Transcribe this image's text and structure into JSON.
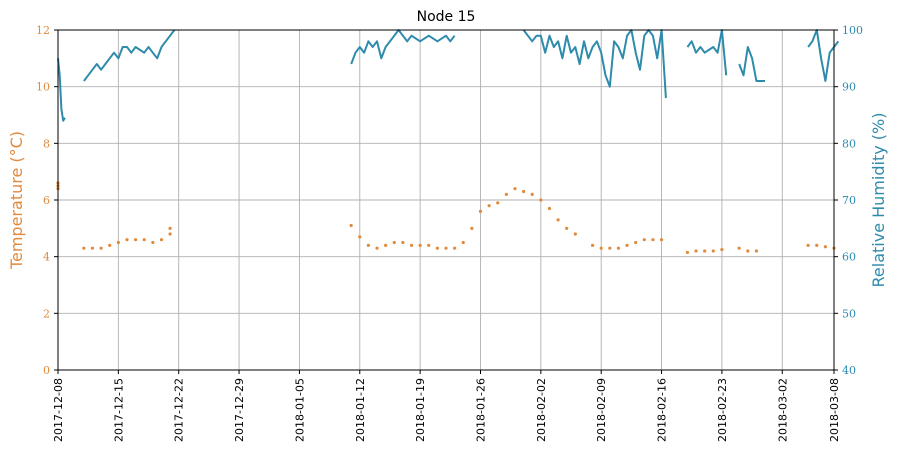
{
  "chart_data": {
    "type": "line",
    "title": "Node 15",
    "ylabel_left": "Temperature (°C)",
    "ylabel_right": "Relative Humidity (%)",
    "xlim": [
      "2017-12-08",
      "2018-03-08"
    ],
    "ylim_left": [
      0,
      12
    ],
    "ylim_right": [
      40,
      100
    ],
    "grid": true,
    "x_ticks": [
      "2017-12-08",
      "2017-12-15",
      "2017-12-22",
      "2017-12-29",
      "2018-01-05",
      "2018-01-12",
      "2018-01-19",
      "2018-01-26",
      "2018-02-02",
      "2018-02-09",
      "2018-02-16",
      "2018-02-23",
      "2018-03-02",
      "2018-03-08"
    ],
    "y_ticks_left": [
      "0",
      "2",
      "4",
      "6",
      "8",
      "10",
      "12"
    ],
    "y_ticks_right": [
      "40",
      "50",
      "60",
      "70",
      "80",
      "90",
      "100"
    ],
    "colors": {
      "temperature": "#e08a3c",
      "humidity": "#2e8bab",
      "grid": "#b0b0b0"
    },
    "series": [
      {
        "axis": "left",
        "style": "markers",
        "segments": [
          [
            [
              "2017-12-08",
              6.6
            ],
            [
              "2017-12-08",
              6.5
            ],
            [
              "2017-12-08",
              6.4
            ]
          ],
          [
            [
              "2017-12-11",
              4.3
            ],
            [
              "2017-12-12",
              4.3
            ],
            [
              "2017-12-13",
              4.3
            ],
            [
              "2017-12-14",
              4.4
            ],
            [
              "2017-12-15",
              4.5
            ],
            [
              "2017-12-16",
              4.6
            ],
            [
              "2017-12-17",
              4.6
            ],
            [
              "2017-12-18",
              4.6
            ],
            [
              "2017-12-19",
              4.5
            ],
            [
              "2017-12-20",
              4.6
            ],
            [
              "2017-12-21",
              4.8
            ],
            [
              "2017-12-21",
              5.0
            ]
          ],
          [
            [
              "2018-01-11",
              5.1
            ],
            [
              "2018-01-12",
              4.7
            ],
            [
              "2018-01-13",
              4.4
            ],
            [
              "2018-01-14",
              4.3
            ],
            [
              "2018-01-15",
              4.4
            ],
            [
              "2018-01-16",
              4.5
            ],
            [
              "2018-01-17",
              4.5
            ],
            [
              "2018-01-18",
              4.4
            ],
            [
              "2018-01-19",
              4.4
            ],
            [
              "2018-01-20",
              4.4
            ],
            [
              "2018-01-21",
              4.3
            ],
            [
              "2018-01-22",
              4.3
            ],
            [
              "2018-01-23",
              4.3
            ],
            [
              "2018-01-24",
              4.5
            ],
            [
              "2018-01-25",
              5.0
            ],
            [
              "2018-01-26",
              5.6
            ],
            [
              "2018-01-27",
              5.8
            ],
            [
              "2018-01-28",
              5.9
            ],
            [
              "2018-01-29",
              6.2
            ],
            [
              "2018-01-30",
              6.4
            ],
            [
              "2018-01-31",
              6.3
            ],
            [
              "2018-02-01",
              6.2
            ],
            [
              "2018-02-02",
              6.0
            ],
            [
              "2018-02-03",
              5.7
            ],
            [
              "2018-02-04",
              5.3
            ],
            [
              "2018-02-05",
              5.0
            ],
            [
              "2018-02-06",
              4.8
            ]
          ],
          [
            [
              "2018-02-08",
              4.4
            ],
            [
              "2018-02-09",
              4.3
            ],
            [
              "2018-02-10",
              4.3
            ],
            [
              "2018-02-11",
              4.3
            ],
            [
              "2018-02-12",
              4.4
            ],
            [
              "2018-02-13",
              4.5
            ],
            [
              "2018-02-14",
              4.6
            ],
            [
              "2018-02-15",
              4.6
            ],
            [
              "2018-02-16",
              4.6
            ]
          ],
          [
            [
              "2018-02-19",
              4.15
            ],
            [
              "2018-02-20",
              4.2
            ],
            [
              "2018-02-21",
              4.2
            ],
            [
              "2018-02-22",
              4.2
            ],
            [
              "2018-02-23",
              4.25
            ]
          ],
          [
            [
              "2018-02-25",
              4.3
            ],
            [
              "2018-02-26",
              4.2
            ],
            [
              "2018-02-27",
              4.2
            ]
          ],
          [
            [
              "2018-03-05",
              4.4
            ],
            [
              "2018-03-06",
              4.4
            ],
            [
              "2018-03-07",
              4.35
            ],
            [
              "2018-03-08",
              4.3
            ]
          ]
        ]
      },
      {
        "axis": "right",
        "style": "line",
        "segments": [
          [
            [
              "2017-12-08",
              95
            ],
            [
              "2017-12-08",
              92
            ],
            [
              "2017-12-08",
              86
            ],
            [
              "2017-12-08",
              84
            ],
            [
              "2017-12-08",
              84.5
            ]
          ],
          [
            [
              "2017-12-11",
              91
            ],
            [
              "2017-12-11",
              92
            ],
            [
              "2017-12-12",
              93
            ],
            [
              "2017-12-12",
              94
            ],
            [
              "2017-12-13",
              93
            ],
            [
              "2017-12-13",
              94
            ],
            [
              "2017-12-14",
              95
            ],
            [
              "2017-12-14",
              96
            ],
            [
              "2017-12-15",
              95
            ],
            [
              "2017-12-15",
              97
            ],
            [
              "2017-12-16",
              97
            ],
            [
              "2017-12-16",
              96
            ],
            [
              "2017-12-17",
              97
            ],
            [
              "2017-12-18",
              96
            ],
            [
              "2017-12-18",
              97
            ],
            [
              "2017-12-19",
              96
            ],
            [
              "2017-12-19",
              95
            ],
            [
              "2017-12-20",
              97
            ],
            [
              "2017-12-20",
              98
            ],
            [
              "2017-12-21",
              99
            ],
            [
              "2017-12-21",
              100
            ]
          ],
          [
            [
              "2018-01-11",
              94
            ],
            [
              "2018-01-11",
              96
            ],
            [
              "2018-01-12",
              97
            ],
            [
              "2018-01-12",
              96
            ],
            [
              "2018-01-13",
              98
            ],
            [
              "2018-01-13",
              97
            ],
            [
              "2018-01-14",
              98
            ],
            [
              "2018-01-14",
              95
            ],
            [
              "2018-01-15",
              97
            ],
            [
              "2018-01-15",
              98
            ],
            [
              "2018-01-16",
              99
            ],
            [
              "2018-01-16",
              100
            ],
            [
              "2018-01-17",
              99
            ],
            [
              "2018-01-17",
              98
            ],
            [
              "2018-01-18",
              99
            ],
            [
              "2018-01-19",
              98
            ],
            [
              "2018-01-20",
              99
            ],
            [
              "2018-01-21",
              98
            ],
            [
              "2018-01-22",
              99
            ],
            [
              "2018-01-22",
              98
            ],
            [
              "2018-01-23",
              99
            ]
          ],
          [
            [
              "2018-01-31",
              100
            ],
            [
              "2018-01-31",
              99
            ],
            [
              "2018-02-01",
              98
            ],
            [
              "2018-02-01",
              99
            ],
            [
              "2018-02-02",
              99
            ],
            [
              "2018-02-02",
              96
            ],
            [
              "2018-02-03",
              99
            ],
            [
              "2018-02-03",
              97
            ],
            [
              "2018-02-04",
              98
            ],
            [
              "2018-02-04",
              95
            ],
            [
              "2018-02-05",
              99
            ],
            [
              "2018-02-05",
              96
            ],
            [
              "2018-02-06",
              97
            ],
            [
              "2018-02-06",
              94
            ],
            [
              "2018-02-07",
              98
            ],
            [
              "2018-02-07",
              95
            ],
            [
              "2018-02-08",
              97
            ],
            [
              "2018-02-08",
              98
            ],
            [
              "2018-02-09",
              96
            ],
            [
              "2018-02-09",
              92
            ],
            [
              "2018-02-10",
              90
            ],
            [
              "2018-02-10",
              98
            ],
            [
              "2018-02-11",
              97
            ],
            [
              "2018-02-11",
              95
            ],
            [
              "2018-02-12",
              99
            ],
            [
              "2018-02-12",
              100
            ],
            [
              "2018-02-13",
              96
            ],
            [
              "2018-02-13",
              93
            ],
            [
              "2018-02-14",
              99
            ],
            [
              "2018-02-14",
              100
            ],
            [
              "2018-02-15",
              99
            ],
            [
              "2018-02-15",
              95
            ],
            [
              "2018-02-16",
              100
            ],
            [
              "2018-02-16",
              88
            ]
          ],
          [
            [
              "2018-02-19",
              97
            ],
            [
              "2018-02-19",
              98
            ],
            [
              "2018-02-20",
              96
            ],
            [
              "2018-02-20",
              97
            ],
            [
              "2018-02-21",
              96
            ],
            [
              "2018-02-22",
              97
            ],
            [
              "2018-02-22",
              96
            ],
            [
              "2018-02-23",
              100
            ],
            [
              "2018-02-23",
              92
            ]
          ],
          [
            [
              "2018-02-25",
              94
            ],
            [
              "2018-02-25",
              92
            ],
            [
              "2018-02-26",
              97
            ],
            [
              "2018-02-26",
              95
            ],
            [
              "2018-02-27",
              91
            ],
            [
              "2018-02-28",
              91
            ]
          ],
          [
            [
              "2018-03-05",
              97
            ],
            [
              "2018-03-05",
              98
            ],
            [
              "2018-03-06",
              100
            ],
            [
              "2018-03-06",
              95
            ],
            [
              "2018-03-07",
              91
            ],
            [
              "2018-03-07",
              96
            ],
            [
              "2018-03-08",
              97
            ],
            [
              "2018-03-08",
              98
            ]
          ]
        ]
      }
    ]
  }
}
